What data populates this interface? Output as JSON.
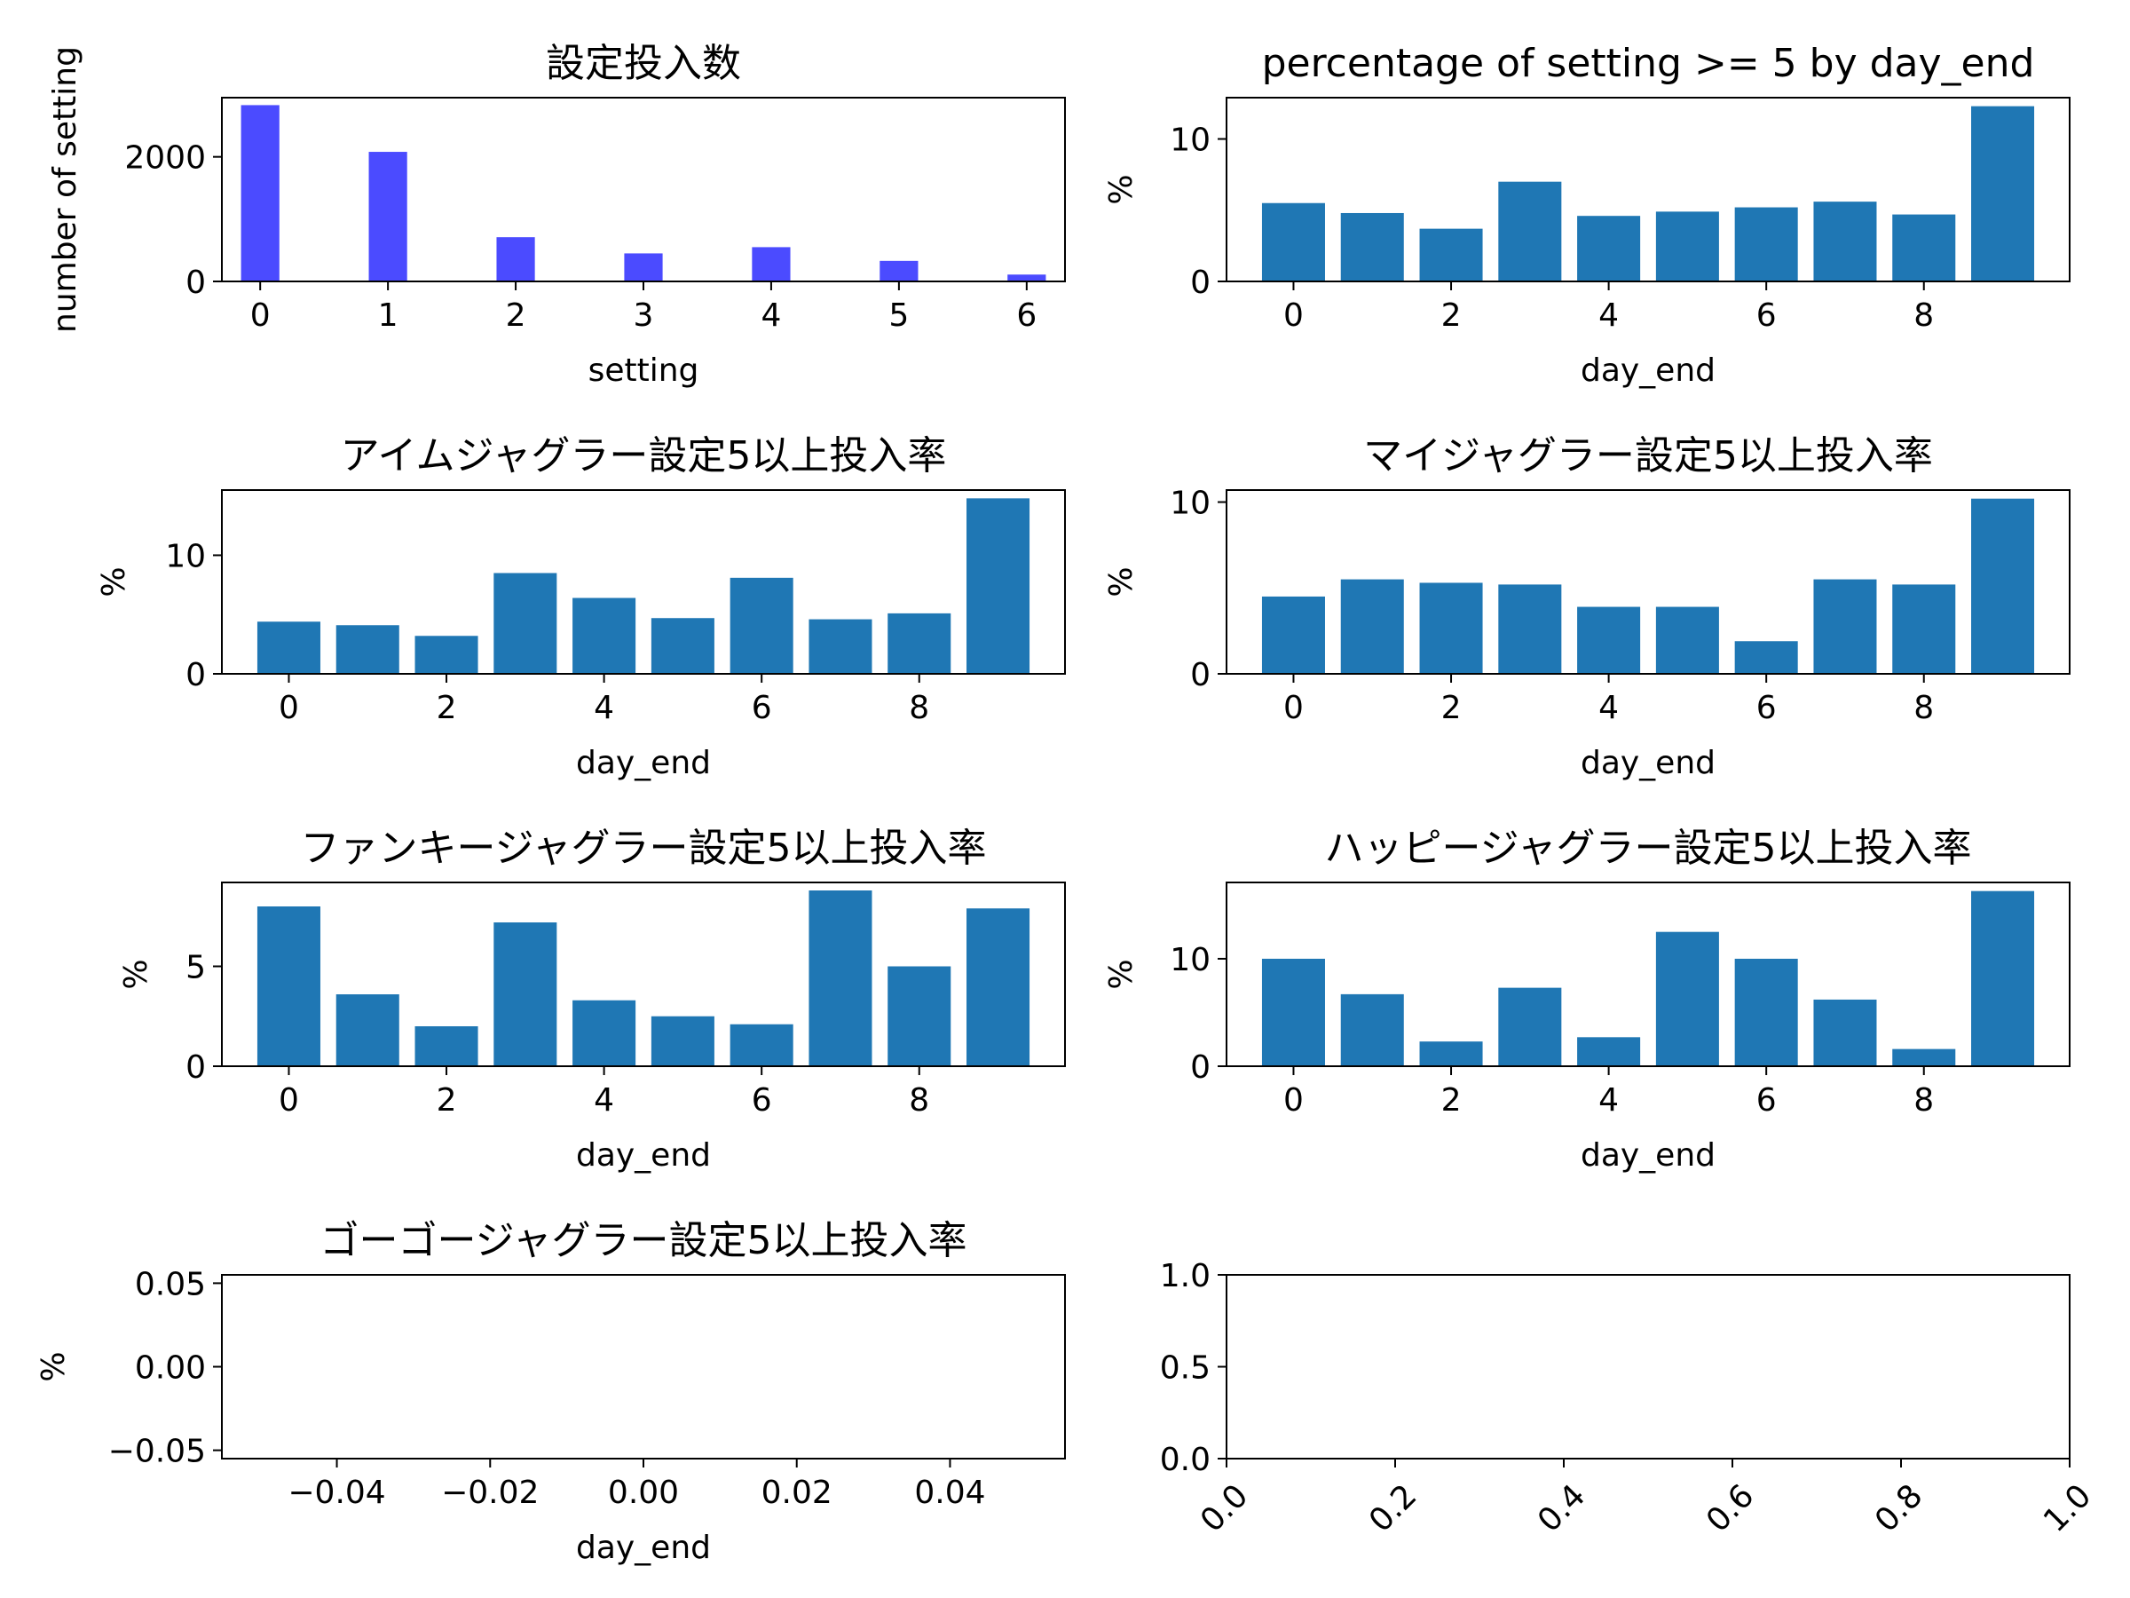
{
  "colors": {
    "bar": "#1f77b4",
    "hist": "#4b4bff",
    "axis": "#000000"
  },
  "chart_data": [
    {
      "type": "bar",
      "title": "設定投入数",
      "xlabel": "setting",
      "ylabel": "number of setting",
      "x": [
        0,
        1,
        2,
        3,
        4,
        5,
        6
      ],
      "values": [
        2830,
        2080,
        710,
        450,
        550,
        330,
        110
      ],
      "xlim": [
        -0.3,
        6.3
      ],
      "ylim": [
        0,
        2950
      ],
      "xticks": [
        0,
        1,
        2,
        3,
        4,
        5,
        6
      ],
      "xtick_labels": [
        "0",
        "1",
        "2",
        "3",
        "4",
        "5",
        "6"
      ],
      "yticks": [
        0,
        2000
      ],
      "ytick_labels": [
        "0",
        "2000"
      ]
    },
    {
      "type": "bar",
      "title": "percentage of setting >= 5 by day_end",
      "xlabel": "day_end",
      "ylabel": "%",
      "x": [
        0,
        1,
        2,
        3,
        4,
        5,
        6,
        7,
        8,
        9
      ],
      "values": [
        5.5,
        4.8,
        3.7,
        7.0,
        4.6,
        4.9,
        5.2,
        5.6,
        4.7,
        12.3
      ],
      "xlim": [
        -0.85,
        9.85
      ],
      "ylim": [
        0,
        12.9
      ],
      "xticks": [
        0,
        2,
        4,
        6,
        8
      ],
      "xtick_labels": [
        "0",
        "2",
        "4",
        "6",
        "8"
      ],
      "yticks": [
        0,
        10
      ],
      "ytick_labels": [
        "0",
        "10"
      ]
    },
    {
      "type": "bar",
      "title": "アイムジャグラー設定5以上投入率",
      "xlabel": "day_end",
      "ylabel": "%",
      "x": [
        0,
        1,
        2,
        3,
        4,
        5,
        6,
        7,
        8,
        9
      ],
      "values": [
        4.4,
        4.1,
        3.2,
        8.5,
        6.4,
        4.7,
        8.1,
        4.6,
        5.1,
        14.8
      ],
      "xlim": [
        -0.85,
        9.85
      ],
      "ylim": [
        0,
        15.5
      ],
      "xticks": [
        0,
        2,
        4,
        6,
        8
      ],
      "xtick_labels": [
        "0",
        "2",
        "4",
        "6",
        "8"
      ],
      "yticks": [
        0,
        10
      ],
      "ytick_labels": [
        "0",
        "10"
      ]
    },
    {
      "type": "bar",
      "title": "マイジャグラー設定5以上投入率",
      "xlabel": "day_end",
      "ylabel": "%",
      "x": [
        0,
        1,
        2,
        3,
        4,
        5,
        6,
        7,
        8,
        9
      ],
      "values": [
        4.5,
        5.5,
        5.3,
        5.2,
        3.9,
        3.9,
        1.9,
        5.5,
        5.2,
        10.2
      ],
      "xlim": [
        -0.85,
        9.85
      ],
      "ylim": [
        0,
        10.7
      ],
      "xticks": [
        0,
        2,
        4,
        6,
        8
      ],
      "xtick_labels": [
        "0",
        "2",
        "4",
        "6",
        "8"
      ],
      "yticks": [
        0,
        10
      ],
      "ytick_labels": [
        "0",
        "10"
      ]
    },
    {
      "type": "bar",
      "title": "ファンキージャグラー設定5以上投入率",
      "xlabel": "day_end",
      "ylabel": "%",
      "x": [
        0,
        1,
        2,
        3,
        4,
        5,
        6,
        7,
        8,
        9
      ],
      "values": [
        8.0,
        3.6,
        2.0,
        7.2,
        3.3,
        2.5,
        2.1,
        8.8,
        5.0,
        7.9
      ],
      "xlim": [
        -0.85,
        9.85
      ],
      "ylim": [
        0,
        9.2
      ],
      "xticks": [
        0,
        2,
        4,
        6,
        8
      ],
      "xtick_labels": [
        "0",
        "2",
        "4",
        "6",
        "8"
      ],
      "yticks": [
        0,
        5
      ],
      "ytick_labels": [
        "0",
        "5"
      ]
    },
    {
      "type": "bar",
      "title": "ハッピージャグラー設定5以上投入率",
      "xlabel": "day_end",
      "ylabel": "%",
      "x": [
        0,
        1,
        2,
        3,
        4,
        5,
        6,
        7,
        8,
        9
      ],
      "values": [
        10.0,
        6.7,
        2.3,
        7.3,
        2.7,
        12.5,
        10.0,
        6.2,
        1.6,
        16.3
      ],
      "xlim": [
        -0.85,
        9.85
      ],
      "ylim": [
        0,
        17.1
      ],
      "xticks": [
        0,
        2,
        4,
        6,
        8
      ],
      "xtick_labels": [
        "0",
        "2",
        "4",
        "6",
        "8"
      ],
      "yticks": [
        0,
        10
      ],
      "ytick_labels": [
        "0",
        "10"
      ]
    },
    {
      "type": "bar",
      "title": "ゴーゴージャグラー設定5以上投入率",
      "xlabel": "day_end",
      "ylabel": "%",
      "x": [],
      "values": [],
      "xlim": [
        -0.055,
        0.055
      ],
      "ylim": [
        -0.055,
        0.055
      ],
      "xticks": [
        -0.04,
        -0.02,
        0,
        0.02,
        0.04
      ],
      "xtick_labels": [
        "−0.04",
        "−0.02",
        "0.00",
        "0.02",
        "0.04"
      ],
      "yticks": [
        -0.05,
        0,
        0.05
      ],
      "ytick_labels": [
        "−0.05",
        "0.00",
        "0.05"
      ]
    },
    {
      "type": "bar",
      "title": "",
      "xlabel": "",
      "ylabel": "",
      "x": [],
      "values": [],
      "xlim": [
        0,
        1
      ],
      "ylim": [
        0,
        1
      ],
      "xticks": [
        0,
        0.2,
        0.4,
        0.6,
        0.8,
        1.0
      ],
      "xtick_labels": [
        "0.0",
        "0.2",
        "0.4",
        "0.6",
        "0.8",
        "1.0"
      ],
      "xtick_rotation": -45,
      "yticks": [
        0,
        0.5,
        1.0
      ],
      "ytick_labels": [
        "0.0",
        "0.5",
        "1.0"
      ]
    }
  ]
}
